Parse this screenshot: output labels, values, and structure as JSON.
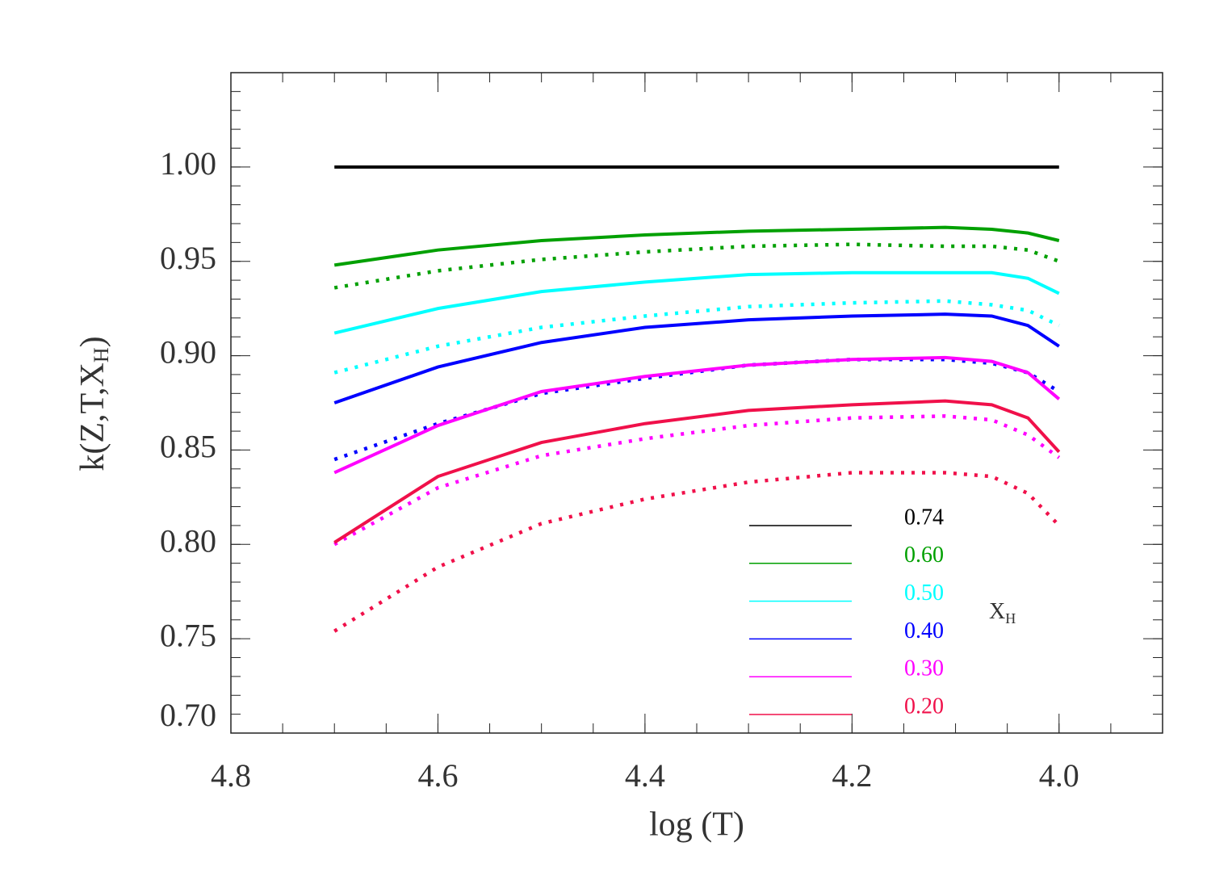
{
  "chart_data": {
    "type": "line",
    "x_label": "log (T)",
    "y_label": {
      "text": "k(Z,T,X",
      "subscript": "H",
      "suffix": ")"
    },
    "legend_title": {
      "text": "X",
      "subscript": "H"
    },
    "legend_position": "lower right",
    "x": [
      4.7,
      4.6,
      4.5,
      4.4,
      4.3,
      4.2,
      4.11,
      4.065,
      4.03,
      4.0
    ],
    "series": [
      {
        "name": "0.74",
        "color": "#000000",
        "style": "solid",
        "values": [
          1.0,
          1.0,
          1.0,
          1.0,
          1.0,
          1.0,
          1.0,
          1.0,
          1.0,
          1.0
        ]
      },
      {
        "name": "0.60",
        "color": "#00a000",
        "style": "solid",
        "values": [
          0.948,
          0.956,
          0.961,
          0.964,
          0.966,
          0.967,
          0.968,
          0.967,
          0.965,
          0.961
        ]
      },
      {
        "color": "#00a000",
        "style": "dotted",
        "values": [
          0.936,
          0.945,
          0.951,
          0.955,
          0.958,
          0.959,
          0.958,
          0.958,
          0.956,
          0.95
        ]
      },
      {
        "name": "0.50",
        "color": "#00ffff",
        "style": "solid",
        "values": [
          0.912,
          0.925,
          0.934,
          0.939,
          0.943,
          0.944,
          0.944,
          0.944,
          0.941,
          0.933
        ]
      },
      {
        "color": "#00ffff",
        "style": "dotted",
        "values": [
          0.891,
          0.905,
          0.915,
          0.921,
          0.926,
          0.928,
          0.929,
          0.927,
          0.924,
          0.916
        ]
      },
      {
        "name": "0.40",
        "color": "#0000ff",
        "style": "solid",
        "values": [
          0.875,
          0.894,
          0.907,
          0.915,
          0.919,
          0.921,
          0.922,
          0.921,
          0.916,
          0.905
        ]
      },
      {
        "color": "#0000ff",
        "style": "dotted",
        "values": [
          0.845,
          0.864,
          0.88,
          0.888,
          0.895,
          0.898,
          0.898,
          0.896,
          0.891,
          0.881
        ]
      },
      {
        "name": "0.30",
        "color": "#ff00ff",
        "style": "solid",
        "values": [
          0.838,
          0.863,
          0.881,
          0.889,
          0.895,
          0.898,
          0.899,
          0.897,
          0.891,
          0.877
        ]
      },
      {
        "color": "#ff00ff",
        "style": "dotted",
        "values": [
          0.8,
          0.83,
          0.847,
          0.856,
          0.863,
          0.867,
          0.868,
          0.866,
          0.858,
          0.846
        ]
      },
      {
        "name": "0.20",
        "color": "#f0104a",
        "style": "solid",
        "values": [
          0.801,
          0.836,
          0.854,
          0.864,
          0.871,
          0.874,
          0.876,
          0.874,
          0.867,
          0.849
        ]
      },
      {
        "color": "#f0104a",
        "style": "dotted",
        "values": [
          0.754,
          0.788,
          0.811,
          0.824,
          0.833,
          0.838,
          0.838,
          0.836,
          0.827,
          0.81
        ]
      }
    ],
    "xlim": [
      4.8,
      3.9
    ],
    "ylim": [
      0.7,
      1.05
    ],
    "xticks": [
      {
        "value": 4.8,
        "label": "4.8"
      },
      {
        "value": 4.6,
        "label": "4.6"
      },
      {
        "value": 4.4,
        "label": "4.4"
      },
      {
        "value": 4.2,
        "label": "4.2"
      },
      {
        "value": 4.0,
        "label": "4.0"
      }
    ],
    "yticks": [
      {
        "value": 0.7,
        "label": "0.70"
      },
      {
        "value": 0.75,
        "label": "0.75"
      },
      {
        "value": 0.8,
        "label": "0.80"
      },
      {
        "value": 0.85,
        "label": "0.85"
      },
      {
        "value": 0.9,
        "label": "0.90"
      },
      {
        "value": 0.95,
        "label": "0.95"
      },
      {
        "value": 1.0,
        "label": "1.00"
      }
    ],
    "x_minor_step": 0.05,
    "y_minor_step": 0.01,
    "grid": false
  }
}
